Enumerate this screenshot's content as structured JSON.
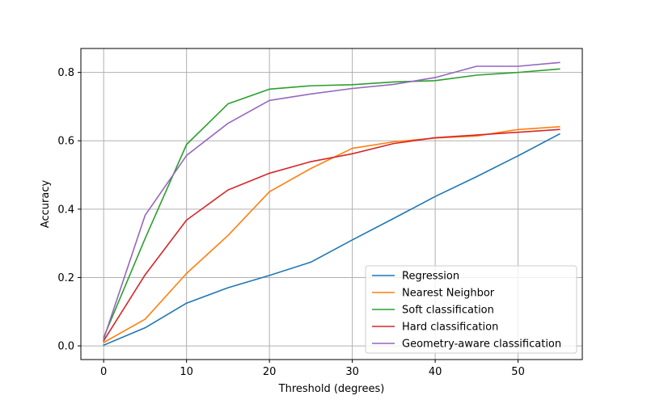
{
  "chart_data": {
    "type": "line",
    "xlabel": "Threshold (degrees)",
    "ylabel": "Accuracy",
    "xlim": [
      -2.75,
      57.75
    ],
    "ylim": [
      -0.04,
      0.87
    ],
    "x_ticks": [
      0,
      10,
      20,
      30,
      40,
      50
    ],
    "y_ticks": [
      0.0,
      0.2,
      0.4,
      0.6,
      0.8
    ],
    "x_tick_labels": [
      "0",
      "10",
      "20",
      "30",
      "40",
      "50"
    ],
    "y_tick_labels": [
      "0.0",
      "0.2",
      "0.4",
      "0.6",
      "0.8"
    ],
    "grid": true,
    "legend_position": "lower right",
    "x": [
      0,
      5,
      10,
      15,
      20,
      25,
      30,
      35,
      40,
      45,
      50,
      55
    ],
    "series": [
      {
        "name": "Regression",
        "color": "#1f77b4",
        "values": [
          0.002,
          0.053,
          0.125,
          0.17,
          0.206,
          0.245,
          0.31,
          0.373,
          0.437,
          0.495,
          0.556,
          0.62
        ]
      },
      {
        "name": "Nearest Neighbor",
        "color": "#ff7f0e",
        "values": [
          0.01,
          0.078,
          0.212,
          0.323,
          0.451,
          0.519,
          0.578,
          0.597,
          0.608,
          0.614,
          0.633,
          0.641
        ]
      },
      {
        "name": "Soft classification",
        "color": "#2ca02c",
        "values": [
          0.025,
          0.314,
          0.589,
          0.708,
          0.751,
          0.761,
          0.764,
          0.772,
          0.776,
          0.792,
          0.8,
          0.81
        ]
      },
      {
        "name": "Hard classification",
        "color": "#d62728",
        "values": [
          0.015,
          0.208,
          0.368,
          0.456,
          0.505,
          0.539,
          0.562,
          0.592,
          0.609,
          0.617,
          0.625,
          0.633
        ]
      },
      {
        "name": "Geometry-aware classification",
        "color": "#9467bd",
        "values": [
          0.02,
          0.382,
          0.557,
          0.651,
          0.718,
          0.737,
          0.753,
          0.765,
          0.785,
          0.818,
          0.818,
          0.829
        ]
      }
    ]
  }
}
